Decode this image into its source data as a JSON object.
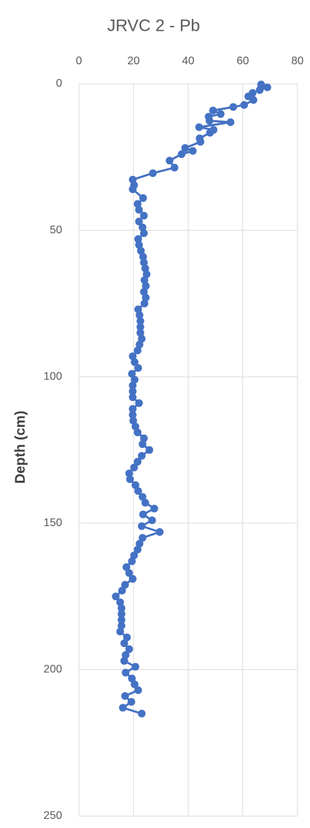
{
  "chart_data": {
    "type": "scatter",
    "title": "JRVC 2 - Pb",
    "ylabel": "Depth (cm)",
    "x": [
      66.7,
      69.0,
      66.2,
      63.6,
      62.0,
      63.9,
      60.5,
      56.5,
      49.1,
      51.9,
      47.5,
      47.8,
      55.5,
      44.0,
      49.3,
      48.0,
      44.2,
      44.5,
      38.9,
      41.7,
      37.6,
      33.2,
      35.0,
      27.1,
      19.7,
      20.2,
      19.7,
      23.5,
      21.5,
      22.0,
      23.8,
      22.0,
      23.3,
      23.8,
      21.7,
      22.0,
      22.7,
      23.5,
      23.8,
      24.3,
      24.8,
      24.0,
      24.5,
      23.8,
      24.5,
      24.0,
      21.7,
      22.2,
      22.5,
      22.5,
      22.5,
      23.0,
      22.2,
      21.5,
      19.7,
      20.4,
      21.7,
      19.4,
      20.4,
      19.7,
      19.7,
      19.7,
      22.0,
      19.7,
      19.7,
      19.9,
      20.7,
      21.5,
      23.8,
      23.3,
      25.8,
      23.0,
      21.5,
      20.2,
      18.4,
      18.7,
      20.7,
      21.7,
      23.3,
      24.3,
      27.6,
      23.5,
      26.8,
      23.0,
      29.6,
      23.3,
      22.2,
      21.5,
      20.2,
      19.4,
      17.4,
      18.4,
      19.7,
      16.9,
      15.8,
      13.5,
      15.1,
      15.6,
      15.6,
      15.6,
      15.6,
      15.1,
      17.6,
      16.6,
      18.4,
      17.1,
      16.6,
      20.7,
      17.1,
      19.4,
      20.4,
      21.7,
      16.9,
      19.2,
      16.1,
      23.0
    ],
    "values": [
      0.2,
      1.2,
      2.1,
      3.1,
      4.3,
      5.5,
      7.2,
      7.9,
      9.1,
      10.3,
      11.2,
      12.6,
      13.1,
      14.8,
      15.7,
      16.7,
      18.6,
      19.8,
      21.9,
      22.9,
      24.0,
      26.2,
      28.6,
      30.5,
      32.7,
      34.6,
      36.0,
      39,
      41,
      43,
      45,
      47,
      49,
      51,
      53,
      55,
      57,
      59,
      61,
      63,
      65,
      67,
      69,
      71,
      73,
      75,
      77,
      79,
      81,
      83,
      85,
      87,
      89,
      91,
      93,
      95,
      97,
      99,
      101,
      103,
      105,
      107,
      109,
      111,
      113,
      115,
      117,
      119,
      121,
      123,
      125,
      127,
      129,
      131,
      133,
      135,
      137,
      139,
      141,
      143,
      145,
      147,
      149,
      151,
      153,
      155,
      157,
      159,
      161,
      163,
      165,
      167,
      169,
      171,
      173,
      175,
      177,
      179,
      181,
      183,
      185,
      187,
      189,
      191,
      193,
      195,
      197,
      199,
      201,
      203,
      205,
      207,
      209,
      211,
      213,
      215
    ],
    "color": "#4472c4",
    "xlim": [
      0,
      80
    ],
    "xticks": [
      0,
      20,
      40,
      60,
      80
    ],
    "ylim": [
      0,
      250
    ],
    "yticks": [
      0,
      50,
      100,
      150,
      200,
      250
    ],
    "y_inverted": true,
    "grid": true,
    "x_axis_position": "top"
  }
}
